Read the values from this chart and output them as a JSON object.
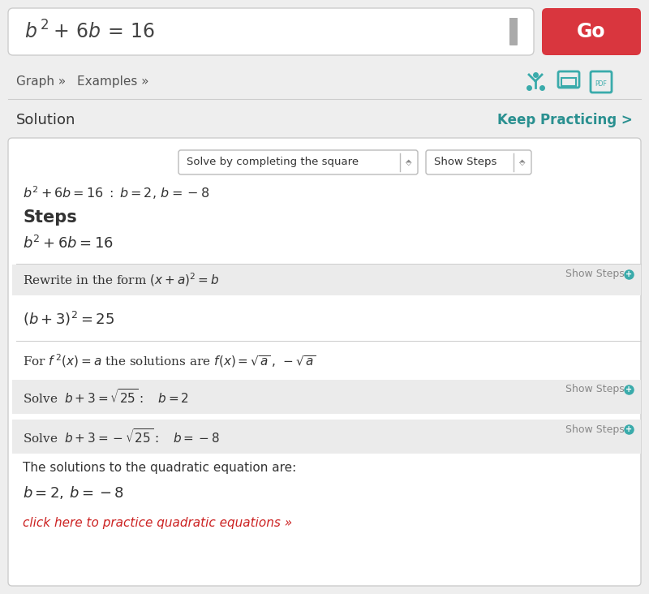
{
  "bg_color": "#eeeeee",
  "white": "#ffffff",
  "gray_box": "#ebebeb",
  "border_color": "#cccccc",
  "divider_color": "#dddddd",
  "text_dark": "#333333",
  "text_gray": "#777777",
  "red_btn": "#d9363e",
  "teal": "#3aabab",
  "teal_bold": "#2a9090",
  "red_link": "#cc2222",
  "go_label": "Go",
  "graph_label": "Graph »",
  "examples_label": "Examples »",
  "solution_label": "Solution",
  "keep_practicing": "Keep Practicing >",
  "dropdown1": "Solve by completing the square",
  "dropdown2": "Show Steps",
  "show_steps_label": "Show Steps",
  "steps_label": "Steps",
  "final_text": "The solutions to the quadratic equation are:",
  "click_text": "click here to practice quadratic equations »"
}
